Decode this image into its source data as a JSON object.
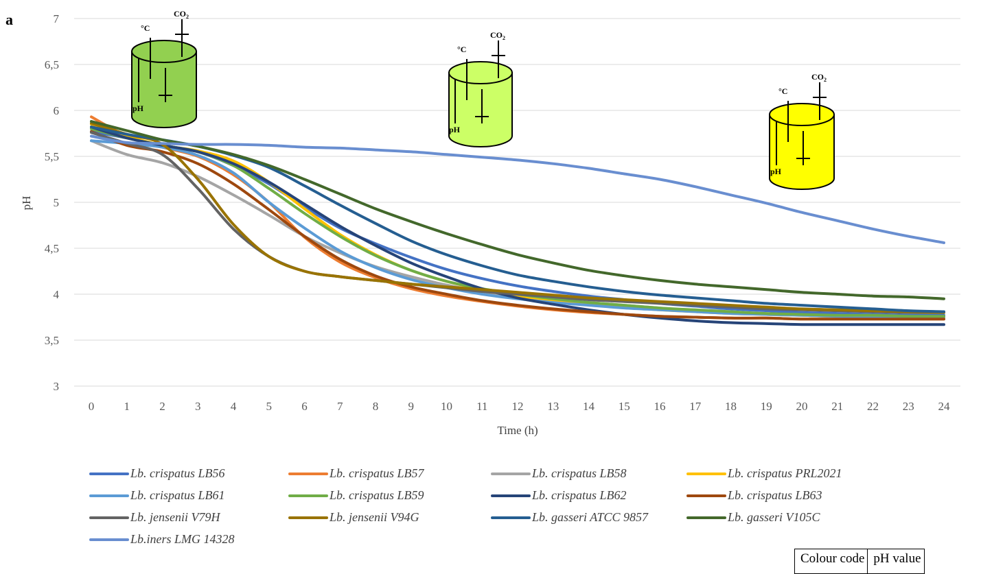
{
  "panel_label": "a",
  "colour_table": {
    "header_left": "Colour code",
    "header_right": "pH value"
  },
  "vessels": [
    {
      "name": "green-vessel",
      "color": "#92d050",
      "temp": "°C",
      "co2": "CO",
      "co2_sub": "2",
      "ph": "pH"
    },
    {
      "name": "lime-vessel",
      "color": "#ccff66",
      "temp": "°C",
      "co2": "CO",
      "co2_sub": "2",
      "ph": "pH"
    },
    {
      "name": "yellow-vessel",
      "color": "#ffff00",
      "temp": "°C",
      "co2": "CO",
      "co2_sub": "2",
      "ph": "pH"
    }
  ],
  "chart_data": {
    "type": "line",
    "title": "",
    "xlabel": "Time (h)",
    "ylabel": "pH",
    "ylim": [
      3,
      7
    ],
    "x": [
      0,
      1,
      2,
      3,
      4,
      5,
      6,
      7,
      8,
      9,
      10,
      11,
      12,
      13,
      14,
      15,
      16,
      17,
      18,
      19,
      20,
      21,
      22,
      23,
      24
    ],
    "yticks": [
      "3",
      "3,5",
      "4",
      "4,5",
      "5",
      "5,5",
      "6",
      "6,5",
      "7"
    ],
    "grid": true,
    "legend_position": "bottom",
    "series": [
      {
        "name": "Lb. crispatus LB56",
        "color": "#4472c4",
        "values": [
          5.77,
          5.7,
          5.62,
          5.55,
          5.4,
          5.2,
          4.95,
          4.72,
          4.55,
          4.4,
          4.27,
          4.17,
          4.09,
          4.03,
          3.98,
          3.94,
          3.9,
          3.87,
          3.84,
          3.82,
          3.8,
          3.79,
          3.78,
          3.77,
          3.77
        ]
      },
      {
        "name": "Lb. crispatus LB57",
        "color": "#ed7d31",
        "values": [
          5.93,
          5.72,
          5.6,
          5.5,
          5.3,
          5.0,
          4.62,
          4.35,
          4.18,
          4.06,
          3.98,
          3.92,
          3.87,
          3.83,
          3.8,
          3.78,
          3.76,
          3.75,
          3.74,
          3.74,
          3.73,
          3.73,
          3.73,
          3.73,
          3.73
        ]
      },
      {
        "name": "Lb. crispatus LB58",
        "color": "#a5a5a5",
        "values": [
          5.67,
          5.52,
          5.43,
          5.28,
          5.08,
          4.86,
          4.63,
          4.45,
          4.3,
          4.19,
          4.1,
          4.03,
          3.98,
          3.94,
          3.91,
          3.88,
          3.85,
          3.82,
          3.8,
          3.78,
          3.77,
          3.76,
          3.76,
          3.75,
          3.75
        ]
      },
      {
        "name": "Lb. crispatus PRL2021",
        "color": "#ffc000",
        "values": [
          5.85,
          5.72,
          5.62,
          5.56,
          5.45,
          5.22,
          4.93,
          4.65,
          4.43,
          4.26,
          4.14,
          4.05,
          3.98,
          3.93,
          3.89,
          3.86,
          3.83,
          3.81,
          3.79,
          3.78,
          3.77,
          3.76,
          3.76,
          3.75,
          3.75
        ]
      },
      {
        "name": "Lb. crispatus LB61",
        "color": "#5b9bd5",
        "values": [
          5.67,
          5.64,
          5.6,
          5.51,
          5.32,
          5.0,
          4.72,
          4.47,
          4.29,
          4.16,
          4.07,
          4.0,
          3.95,
          3.91,
          3.88,
          3.85,
          3.83,
          3.81,
          3.79,
          3.78,
          3.77,
          3.76,
          3.75,
          3.75,
          3.75
        ]
      },
      {
        "name": "Lb. crispatus LB59",
        "color": "#70ad47",
        "values": [
          5.8,
          5.7,
          5.62,
          5.55,
          5.4,
          5.15,
          4.88,
          4.63,
          4.42,
          4.26,
          4.14,
          4.06,
          4.0,
          3.95,
          3.91,
          3.88,
          3.85,
          3.83,
          3.81,
          3.79,
          3.78,
          3.77,
          3.77,
          3.76,
          3.76
        ]
      },
      {
        "name": "Lb. crispatus LB62",
        "color": "#264478",
        "values": [
          5.82,
          5.7,
          5.62,
          5.55,
          5.42,
          5.22,
          4.98,
          4.74,
          4.53,
          4.34,
          4.19,
          4.06,
          3.96,
          3.89,
          3.83,
          3.78,
          3.74,
          3.71,
          3.69,
          3.68,
          3.67,
          3.67,
          3.67,
          3.67,
          3.67
        ]
      },
      {
        "name": "Lb. crispatus LB63",
        "color": "#9e480e",
        "values": [
          5.77,
          5.62,
          5.55,
          5.42,
          5.2,
          4.92,
          4.63,
          4.38,
          4.2,
          4.08,
          4.0,
          3.93,
          3.88,
          3.84,
          3.81,
          3.78,
          3.76,
          3.75,
          3.74,
          3.74,
          3.73,
          3.73,
          3.73,
          3.73,
          3.73
        ]
      },
      {
        "name": "Lb. jensenii V79H",
        "color": "#636363",
        "values": [
          5.76,
          5.64,
          5.52,
          5.15,
          4.71,
          4.41,
          4.25,
          4.19,
          4.15,
          4.11,
          4.07,
          4.03,
          4.0,
          3.97,
          3.94,
          3.92,
          3.9,
          3.88,
          3.86,
          3.84,
          3.83,
          3.82,
          3.81,
          3.8,
          3.8
        ]
      },
      {
        "name": "Lb. jensenii V94G",
        "color": "#997300",
        "values": [
          5.86,
          5.74,
          5.63,
          5.25,
          4.76,
          4.41,
          4.25,
          4.19,
          4.15,
          4.11,
          4.08,
          4.05,
          4.02,
          3.99,
          3.96,
          3.94,
          3.92,
          3.9,
          3.88,
          3.86,
          3.84,
          3.83,
          3.82,
          3.81,
          3.8
        ]
      },
      {
        "name": "Lb. gasseri ATCC 9857",
        "color": "#255e91",
        "values": [
          5.82,
          5.74,
          5.68,
          5.61,
          5.51,
          5.38,
          5.18,
          4.97,
          4.77,
          4.58,
          4.43,
          4.31,
          4.21,
          4.14,
          4.08,
          4.03,
          3.99,
          3.96,
          3.93,
          3.9,
          3.88,
          3.86,
          3.84,
          3.82,
          3.81
        ]
      },
      {
        "name": "Lb. gasseri V105C",
        "color": "#43682b",
        "values": [
          5.88,
          5.78,
          5.68,
          5.61,
          5.52,
          5.4,
          5.25,
          5.09,
          4.93,
          4.79,
          4.66,
          4.54,
          4.43,
          4.34,
          4.26,
          4.2,
          4.15,
          4.11,
          4.08,
          4.05,
          4.02,
          4.0,
          3.98,
          3.97,
          3.95
        ]
      },
      {
        "name": "Lb.iners LMG 14328",
        "color": "#698ed0",
        "values": [
          5.72,
          5.65,
          5.64,
          5.63,
          5.63,
          5.62,
          5.6,
          5.59,
          5.57,
          5.55,
          5.52,
          5.49,
          5.46,
          5.42,
          5.37,
          5.31,
          5.25,
          5.17,
          5.08,
          4.99,
          4.89,
          4.8,
          4.71,
          4.63,
          4.56
        ]
      }
    ]
  }
}
